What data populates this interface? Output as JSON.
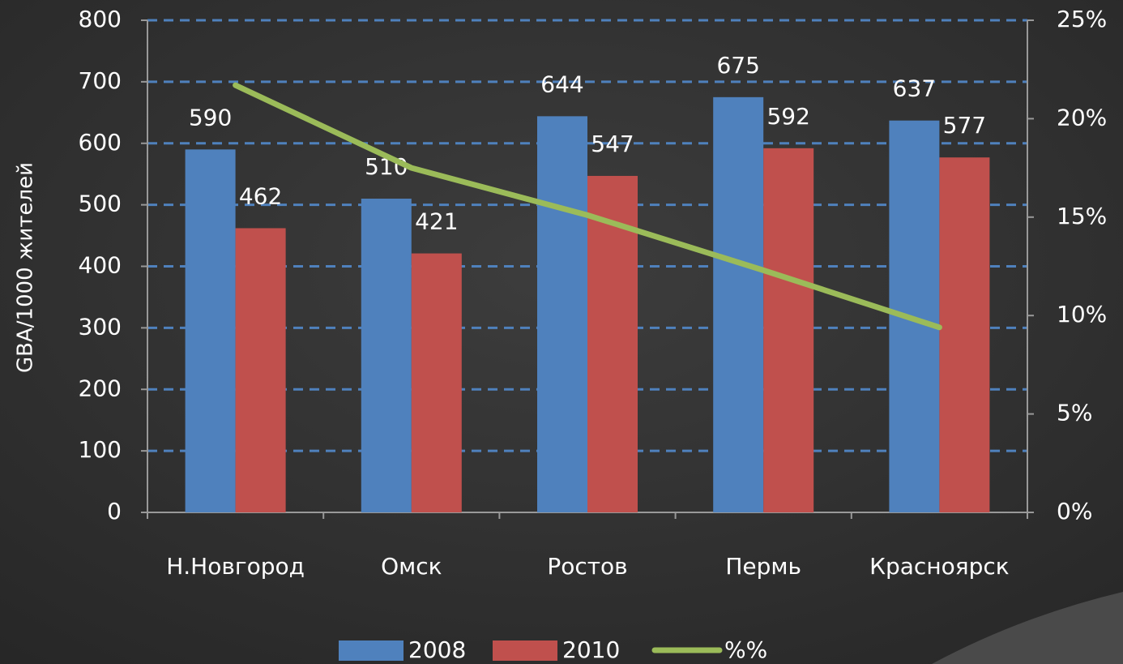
{
  "chart_data": {
    "type": "bar",
    "y_label": "GBA/1000 жителей",
    "categories": [
      "Н.Новгород",
      "Омск",
      "Ростов",
      "Пермь",
      "Красноярск"
    ],
    "series": [
      {
        "name": "2008",
        "type": "bar",
        "color": "#4f81bd",
        "values": [
          590,
          510,
          644,
          675,
          637
        ]
      },
      {
        "name": "2010",
        "type": "bar",
        "color": "#c0504d",
        "values": [
          462,
          421,
          547,
          592,
          577
        ]
      },
      {
        "name": "%%",
        "type": "line",
        "axis": "y2",
        "color": "#9bbb59",
        "values": [
          21.7,
          17.5,
          15.1,
          12.3,
          9.4
        ]
      }
    ],
    "ylim": [
      0,
      800
    ],
    "yticks": [
      0,
      100,
      200,
      300,
      400,
      500,
      600,
      700,
      800
    ],
    "y2lim": [
      0,
      25
    ],
    "y2ticks": [
      {
        "value": 0,
        "label": "0%"
      },
      {
        "value": 5,
        "label": "5%"
      },
      {
        "value": 10,
        "label": "10%"
      },
      {
        "value": 15,
        "label": "15%"
      },
      {
        "value": 20,
        "label": "20%"
      },
      {
        "value": 25,
        "label": "25%"
      }
    ],
    "grid": true,
    "legend": "bottom",
    "data_labels": true
  }
}
